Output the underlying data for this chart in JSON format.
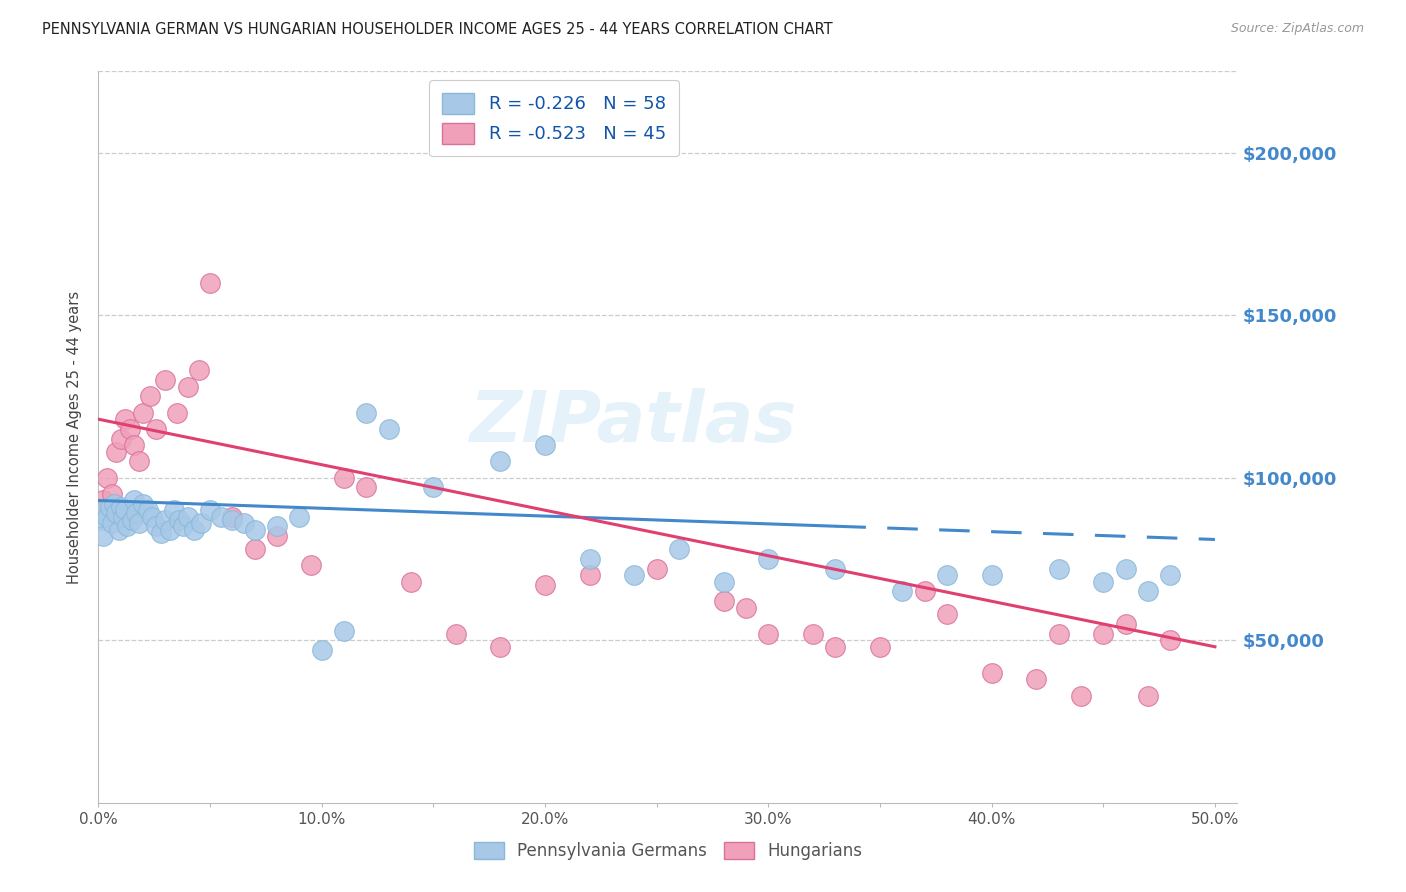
{
  "title": "PENNSYLVANIA GERMAN VS HUNGARIAN HOUSEHOLDER INCOME AGES 25 - 44 YEARS CORRELATION CHART",
  "source": "Source: ZipAtlas.com",
  "ylabel": "Householder Income Ages 25 - 44 years",
  "legend_label1": "Pennsylvania Germans",
  "legend_label2": "Hungarians",
  "r1": "-0.226",
  "n1": "58",
  "r2": "-0.523",
  "n2": "45",
  "color_blue": "#A8C8E8",
  "color_pink": "#F0A0B8",
  "trendline_blue": "#4488CC",
  "trendline_pink": "#E04070",
  "ytick_color": "#4488CC",
  "watermark": "ZIPatlas",
  "blue_scatter_x": [
    0.1,
    0.2,
    0.3,
    0.4,
    0.5,
    0.6,
    0.7,
    0.8,
    0.9,
    1.0,
    1.1,
    1.2,
    1.3,
    1.5,
    1.6,
    1.7,
    1.8,
    2.0,
    2.2,
    2.4,
    2.6,
    2.8,
    3.0,
    3.2,
    3.4,
    3.6,
    3.8,
    4.0,
    4.3,
    4.6,
    5.0,
    5.5,
    6.0,
    6.5,
    7.0,
    8.0,
    9.0,
    10.0,
    11.0,
    12.0,
    13.0,
    15.0,
    18.0,
    20.0,
    22.0,
    24.0,
    26.0,
    28.0,
    30.0,
    33.0,
    36.0,
    38.0,
    40.0,
    43.0,
    45.0,
    46.0,
    47.0,
    48.0
  ],
  "blue_scatter_y": [
    87000,
    82000,
    90000,
    88000,
    91000,
    86000,
    92000,
    89000,
    84000,
    91000,
    88000,
    90000,
    85000,
    87000,
    93000,
    89000,
    86000,
    92000,
    90000,
    88000,
    85000,
    83000,
    87000,
    84000,
    90000,
    87000,
    85000,
    88000,
    84000,
    86000,
    90000,
    88000,
    87000,
    86000,
    84000,
    85000,
    88000,
    47000,
    53000,
    120000,
    115000,
    97000,
    105000,
    110000,
    75000,
    70000,
    78000,
    68000,
    75000,
    72000,
    65000,
    70000,
    70000,
    72000,
    68000,
    72000,
    65000,
    70000
  ],
  "pink_scatter_x": [
    0.2,
    0.4,
    0.6,
    0.8,
    1.0,
    1.2,
    1.4,
    1.6,
    1.8,
    2.0,
    2.3,
    2.6,
    3.0,
    3.5,
    4.0,
    4.5,
    5.0,
    6.0,
    7.0,
    8.0,
    9.5,
    11.0,
    12.0,
    14.0,
    16.0,
    18.0,
    20.0,
    22.0,
    25.0,
    28.0,
    29.0,
    30.0,
    32.0,
    33.0,
    35.0,
    37.0,
    38.0,
    40.0,
    42.0,
    43.0,
    44.0,
    45.0,
    46.0,
    47.0,
    48.0
  ],
  "pink_scatter_y": [
    93000,
    100000,
    95000,
    108000,
    112000,
    118000,
    115000,
    110000,
    105000,
    120000,
    125000,
    115000,
    130000,
    120000,
    128000,
    133000,
    160000,
    88000,
    78000,
    82000,
    73000,
    100000,
    97000,
    68000,
    52000,
    48000,
    67000,
    70000,
    72000,
    62000,
    60000,
    52000,
    52000,
    48000,
    48000,
    65000,
    58000,
    40000,
    38000,
    52000,
    33000,
    52000,
    55000,
    33000,
    50000
  ],
  "blue_trend_x": [
    0.0,
    50.0
  ],
  "blue_trend_y": [
    93000,
    81000
  ],
  "pink_trend_x": [
    0.0,
    50.0
  ],
  "pink_trend_y": [
    118000,
    48000
  ],
  "blue_dash_start": 33.0,
  "xlim": [
    0.0,
    51.0
  ],
  "ylim": [
    0,
    225000
  ],
  "yticks": [
    0,
    50000,
    100000,
    150000,
    200000
  ],
  "ytick_labels": [
    "",
    "$50,000",
    "$100,000",
    "$150,000",
    "$200,000"
  ],
  "xticks": [
    0.0,
    5.0,
    10.0,
    15.0,
    20.0,
    25.0,
    30.0,
    35.0,
    40.0,
    45.0,
    50.0
  ],
  "xtick_labels": [
    "0.0%",
    "",
    "10.0%",
    "",
    "20.0%",
    "",
    "30.0%",
    "",
    "40.0%",
    "",
    "50.0%"
  ],
  "xtick_major": [
    0.0,
    10.0,
    20.0,
    30.0,
    40.0,
    50.0
  ]
}
